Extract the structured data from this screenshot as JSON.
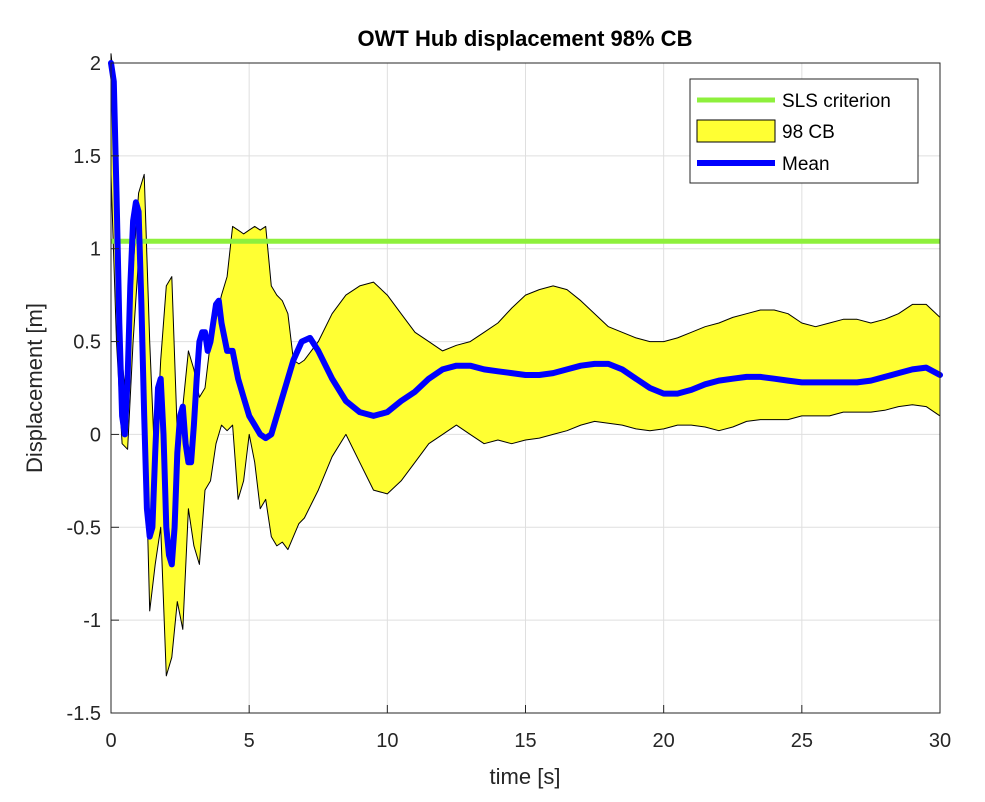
{
  "chart_data": {
    "type": "line",
    "title": "OWT Hub displacement 98% CB",
    "xlabel": "time [s]",
    "ylabel": "Displacement [m]",
    "xlim": [
      0,
      30
    ],
    "ylim": [
      -1.5,
      2
    ],
    "xticks": [
      0,
      5,
      10,
      15,
      20,
      25,
      30
    ],
    "yticks": [
      -1.5,
      -1,
      -0.5,
      0,
      0.5,
      1,
      1.5,
      2
    ],
    "xtick_labels": [
      "0",
      "5",
      "10",
      "15",
      "20",
      "25",
      "30"
    ],
    "ytick_labels": [
      "-1.5",
      "-1",
      "-0.5",
      "0",
      "0.5",
      "1",
      "1.5",
      "2"
    ],
    "grid": true,
    "legend_position": "top-right",
    "legend": [
      "SLS criterion",
      "98 CB",
      "Mean"
    ],
    "colors": {
      "sls": "#8ef03c",
      "band": "#ffff33",
      "mean": "#0000ff"
    },
    "sls_criterion": 1.04,
    "band_upper": {
      "x": [
        0,
        0.2,
        0.4,
        0.6,
        0.8,
        1.0,
        1.2,
        1.4,
        1.6,
        1.8,
        2.0,
        2.2,
        2.4,
        2.6,
        2.8,
        3.0,
        3.2,
        3.4,
        3.6,
        3.8,
        4.0,
        4.2,
        4.4,
        4.6,
        4.8,
        5.0,
        5.2,
        5.4,
        5.6,
        5.8,
        6.0,
        6.2,
        6.4,
        6.6,
        6.8,
        7.0,
        7.5,
        8.0,
        8.5,
        9.0,
        9.5,
        10.0,
        10.5,
        11.0,
        11.5,
        12.0,
        12.5,
        13.0,
        13.5,
        14.0,
        14.5,
        15.0,
        15.5,
        16.0,
        16.5,
        17.0,
        17.5,
        18.0,
        18.5,
        19.0,
        19.5,
        20.0,
        20.5,
        21.0,
        21.5,
        22.0,
        22.5,
        23.0,
        23.5,
        24.0,
        24.5,
        25.0,
        25.5,
        26.0,
        26.5,
        27.0,
        27.5,
        28.0,
        28.5,
        29.0,
        29.5,
        30.0
      ],
      "y": [
        2.05,
        1.75,
        0.4,
        0.1,
        0.9,
        1.3,
        1.4,
        0.5,
        -0.2,
        0.4,
        0.8,
        0.85,
        0.0,
        0.15,
        0.45,
        0.35,
        0.2,
        0.25,
        0.5,
        0.62,
        0.75,
        0.85,
        1.12,
        1.1,
        1.08,
        1.1,
        1.12,
        1.1,
        1.12,
        0.8,
        0.75,
        0.72,
        0.65,
        0.4,
        0.38,
        0.4,
        0.5,
        0.65,
        0.75,
        0.8,
        0.82,
        0.75,
        0.65,
        0.55,
        0.5,
        0.45,
        0.48,
        0.5,
        0.55,
        0.6,
        0.68,
        0.75,
        0.78,
        0.8,
        0.78,
        0.72,
        0.65,
        0.58,
        0.55,
        0.52,
        0.5,
        0.5,
        0.52,
        0.55,
        0.58,
        0.6,
        0.63,
        0.65,
        0.67,
        0.67,
        0.65,
        0.6,
        0.58,
        0.6,
        0.62,
        0.62,
        0.6,
        0.62,
        0.65,
        0.7,
        0.7,
        0.63
      ]
    },
    "band_lower": {
      "x": [
        0,
        0.2,
        0.4,
        0.6,
        0.8,
        1.0,
        1.2,
        1.4,
        1.6,
        1.8,
        2.0,
        2.2,
        2.4,
        2.6,
        2.8,
        3.0,
        3.2,
        3.4,
        3.6,
        3.8,
        4.0,
        4.2,
        4.4,
        4.6,
        4.8,
        5.0,
        5.2,
        5.4,
        5.6,
        5.8,
        6.0,
        6.2,
        6.4,
        6.6,
        6.8,
        7.0,
        7.5,
        8.0,
        8.5,
        9.0,
        9.5,
        10.0,
        10.5,
        11.0,
        11.5,
        12.0,
        12.5,
        13.0,
        13.5,
        14.0,
        14.5,
        15.0,
        15.5,
        16.0,
        16.5,
        17.0,
        17.5,
        18.0,
        18.5,
        19.0,
        19.5,
        20.0,
        20.5,
        21.0,
        21.5,
        22.0,
        22.5,
        23.0,
        23.5,
        24.0,
        24.5,
        25.0,
        25.5,
        26.0,
        26.5,
        27.0,
        27.5,
        28.0,
        28.5,
        29.0,
        29.5,
        30.0
      ],
      "y": [
        1.4,
        0.5,
        -0.05,
        -0.08,
        0.5,
        0.95,
        0.2,
        -0.95,
        -0.7,
        -0.5,
        -1.3,
        -1.2,
        -0.9,
        -1.05,
        -0.4,
        -0.6,
        -0.7,
        -0.3,
        -0.25,
        -0.05,
        0.05,
        0.02,
        0.05,
        -0.35,
        -0.25,
        0.0,
        -0.15,
        -0.4,
        -0.35,
        -0.55,
        -0.6,
        -0.58,
        -0.62,
        -0.55,
        -0.48,
        -0.45,
        -0.3,
        -0.12,
        0.0,
        -0.15,
        -0.3,
        -0.32,
        -0.25,
        -0.15,
        -0.05,
        0.0,
        0.05,
        0.0,
        -0.05,
        -0.03,
        -0.05,
        -0.03,
        -0.02,
        0.0,
        0.02,
        0.05,
        0.07,
        0.06,
        0.05,
        0.03,
        0.02,
        0.03,
        0.05,
        0.05,
        0.04,
        0.02,
        0.04,
        0.07,
        0.08,
        0.08,
        0.08,
        0.1,
        0.1,
        0.1,
        0.12,
        0.12,
        0.12,
        0.13,
        0.15,
        0.16,
        0.15,
        0.1
      ]
    },
    "mean": {
      "x": [
        0,
        0.1,
        0.2,
        0.3,
        0.4,
        0.5,
        0.6,
        0.7,
        0.8,
        0.9,
        1.0,
        1.1,
        1.2,
        1.3,
        1.4,
        1.5,
        1.6,
        1.7,
        1.8,
        1.9,
        2.0,
        2.1,
        2.2,
        2.3,
        2.4,
        2.5,
        2.6,
        2.7,
        2.8,
        2.9,
        3.0,
        3.1,
        3.2,
        3.3,
        3.4,
        3.5,
        3.6,
        3.7,
        3.8,
        3.9,
        4.0,
        4.2,
        4.4,
        4.6,
        4.8,
        5.0,
        5.2,
        5.4,
        5.6,
        5.8,
        6.0,
        6.3,
        6.6,
        6.9,
        7.2,
        7.5,
        8.0,
        8.5,
        9.0,
        9.5,
        10.0,
        10.5,
        11.0,
        11.5,
        12.0,
        12.5,
        13.0,
        13.5,
        14.0,
        14.5,
        15.0,
        15.5,
        16.0,
        16.5,
        17.0,
        17.5,
        18.0,
        18.5,
        19.0,
        19.5,
        20.0,
        20.5,
        21.0,
        21.5,
        22.0,
        22.5,
        23.0,
        23.5,
        24.0,
        24.5,
        25.0,
        25.5,
        26.0,
        26.5,
        27.0,
        27.5,
        28.0,
        28.5,
        29.0,
        29.5,
        30.0
      ],
      "y": [
        2.0,
        1.9,
        1.3,
        0.6,
        0.1,
        0.0,
        0.3,
        0.8,
        1.15,
        1.25,
        1.2,
        0.7,
        0.1,
        -0.4,
        -0.55,
        -0.5,
        -0.1,
        0.25,
        0.3,
        0.0,
        -0.5,
        -0.65,
        -0.7,
        -0.5,
        -0.1,
        0.1,
        0.15,
        -0.05,
        -0.15,
        -0.15,
        0.05,
        0.3,
        0.5,
        0.55,
        0.55,
        0.45,
        0.5,
        0.6,
        0.7,
        0.72,
        0.6,
        0.45,
        0.45,
        0.3,
        0.2,
        0.1,
        0.05,
        0.0,
        -0.02,
        0.0,
        0.1,
        0.25,
        0.4,
        0.5,
        0.52,
        0.45,
        0.3,
        0.18,
        0.12,
        0.1,
        0.12,
        0.18,
        0.23,
        0.3,
        0.35,
        0.37,
        0.37,
        0.35,
        0.34,
        0.33,
        0.32,
        0.32,
        0.33,
        0.35,
        0.37,
        0.38,
        0.38,
        0.35,
        0.3,
        0.25,
        0.22,
        0.22,
        0.24,
        0.27,
        0.29,
        0.3,
        0.31,
        0.31,
        0.3,
        0.29,
        0.28,
        0.28,
        0.28,
        0.28,
        0.28,
        0.29,
        0.31,
        0.33,
        0.35,
        0.36,
        0.32
      ]
    }
  }
}
